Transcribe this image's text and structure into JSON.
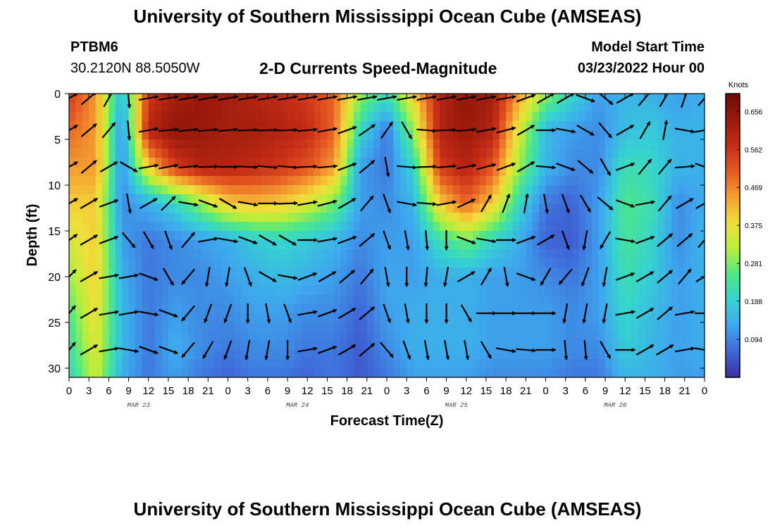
{
  "header": {
    "title": "University of Southern Mississippi Ocean Cube (AMSEAS)",
    "station": "PTBM6",
    "coordinates": "30.2120N  88.5050W",
    "subtitle": "2-D Currents Speed-Magnitude",
    "model_start_label": "Model Start Time",
    "model_start_value": "03/23/2022 Hour 00"
  },
  "footer": {
    "title": "University of Southern Mississippi Ocean Cube (AMSEAS)"
  },
  "chart_data": {
    "type": "heatmap",
    "xlabel": "Forecast Time(Z)",
    "ylabel": "Depth (ft)",
    "x_range_hours": [
      0,
      96
    ],
    "x_tick_labels": [
      "0",
      "3",
      "6",
      "9",
      "12",
      "15",
      "18",
      "21",
      "0",
      "3",
      "6",
      "9",
      "12",
      "15",
      "18",
      "21",
      "0",
      "3",
      "6",
      "9",
      "12",
      "15",
      "18",
      "21",
      "0",
      "3",
      "6",
      "9",
      "12",
      "15",
      "18",
      "21",
      "0"
    ],
    "day_labels": [
      {
        "label": "MAR 23",
        "hour": 10.5
      },
      {
        "label": "MAR 24",
        "hour": 34.5
      },
      {
        "label": "MAR 25",
        "hour": 58.5
      },
      {
        "label": "MAR 26",
        "hour": 82.5
      }
    ],
    "ylim": [
      0,
      31
    ],
    "y_ticks": [
      0,
      5,
      10,
      15,
      20,
      25,
      30
    ],
    "colorbar": {
      "label": "Knots",
      "min": 0.0,
      "max": 0.7,
      "ticks": [
        0.656,
        0.562,
        0.469,
        0.375,
        0.281,
        0.188,
        0.094
      ],
      "colors": [
        "#3a2ea0",
        "#3f67d8",
        "#3ea6ee",
        "#35d2d2",
        "#4ee886",
        "#b8ee3a",
        "#f1df3a",
        "#f5a030",
        "#e55a22",
        "#c62d16",
        "#9a1a0c",
        "#6e0c06"
      ]
    },
    "speed_knots": {
      "time_hours": [
        0,
        4,
        8,
        12,
        16,
        20,
        24,
        28,
        32,
        36,
        40,
        44,
        48,
        52,
        56,
        60,
        64,
        68,
        72,
        76,
        80,
        84,
        88,
        92,
        96
      ],
      "depth_ft": [
        0,
        4,
        8,
        12,
        16,
        20,
        24,
        28,
        31
      ],
      "values": [
        [
          0.55,
          0.45,
          0.15,
          0.55,
          0.62,
          0.64,
          0.62,
          0.6,
          0.58,
          0.55,
          0.5,
          0.3,
          0.22,
          0.4,
          0.6,
          0.65,
          0.62,
          0.45,
          0.3,
          0.2,
          0.12,
          0.15,
          0.14,
          0.12,
          0.14
        ],
        [
          0.5,
          0.45,
          0.1,
          0.6,
          0.65,
          0.64,
          0.62,
          0.62,
          0.6,
          0.58,
          0.5,
          0.2,
          0.08,
          0.3,
          0.6,
          0.64,
          0.6,
          0.35,
          0.15,
          0.12,
          0.1,
          0.16,
          0.18,
          0.14,
          0.15
        ],
        [
          0.45,
          0.45,
          0.1,
          0.4,
          0.55,
          0.6,
          0.6,
          0.58,
          0.56,
          0.52,
          0.45,
          0.12,
          0.08,
          0.2,
          0.55,
          0.6,
          0.52,
          0.3,
          0.15,
          0.1,
          0.1,
          0.22,
          0.2,
          0.15,
          0.14
        ],
        [
          0.4,
          0.4,
          0.1,
          0.14,
          0.2,
          0.3,
          0.4,
          0.42,
          0.4,
          0.35,
          0.28,
          0.12,
          0.1,
          0.15,
          0.4,
          0.5,
          0.4,
          0.2,
          0.08,
          0.06,
          0.12,
          0.25,
          0.22,
          0.1,
          0.14
        ],
        [
          0.35,
          0.4,
          0.12,
          0.08,
          0.1,
          0.12,
          0.14,
          0.18,
          0.2,
          0.18,
          0.15,
          0.1,
          0.12,
          0.12,
          0.22,
          0.28,
          0.2,
          0.14,
          0.06,
          0.05,
          0.12,
          0.24,
          0.2,
          0.1,
          0.15
        ],
        [
          0.3,
          0.4,
          0.14,
          0.08,
          0.1,
          0.1,
          0.12,
          0.14,
          0.16,
          0.14,
          0.12,
          0.08,
          0.13,
          0.12,
          0.14,
          0.14,
          0.12,
          0.12,
          0.1,
          0.08,
          0.12,
          0.22,
          0.18,
          0.12,
          0.14
        ],
        [
          0.25,
          0.38,
          0.15,
          0.08,
          0.12,
          0.1,
          0.1,
          0.12,
          0.12,
          0.1,
          0.1,
          0.06,
          0.12,
          0.14,
          0.14,
          0.14,
          0.12,
          0.12,
          0.12,
          0.1,
          0.12,
          0.2,
          0.16,
          0.12,
          0.14
        ],
        [
          0.22,
          0.36,
          0.15,
          0.08,
          0.14,
          0.1,
          0.08,
          0.1,
          0.1,
          0.08,
          0.08,
          0.05,
          0.1,
          0.14,
          0.14,
          0.14,
          0.12,
          0.12,
          0.12,
          0.1,
          0.1,
          0.18,
          0.15,
          0.12,
          0.14
        ],
        [
          0.2,
          0.34,
          0.14,
          0.08,
          0.12,
          0.08,
          0.06,
          0.08,
          0.08,
          0.06,
          0.08,
          0.05,
          0.08,
          0.12,
          0.12,
          0.12,
          0.1,
          0.1,
          0.1,
          0.08,
          0.08,
          0.15,
          0.14,
          0.12,
          0.12
        ]
      ]
    },
    "vectors": {
      "time_hours": [
        0,
        3,
        6,
        9,
        12,
        15,
        18,
        21,
        24,
        27,
        30,
        33,
        36,
        39,
        42,
        45,
        48,
        51,
        54,
        57,
        60,
        63,
        66,
        69,
        72,
        75,
        78,
        81,
        84,
        87,
        90,
        93,
        96
      ],
      "depth_ft": [
        0.5,
        4,
        8,
        12,
        16,
        20,
        24,
        28
      ],
      "direction_deg": [
        [
          60,
          50,
          30,
          175,
          80,
          80,
          80,
          80,
          80,
          80,
          80,
          80,
          80,
          80,
          80,
          80,
          80,
          80,
          80,
          80,
          80,
          80,
          80,
          70,
          60,
          60,
          110,
          130,
          60,
          40,
          30,
          20,
          40
        ],
        [
          60,
          50,
          40,
          175,
          80,
          85,
          85,
          85,
          85,
          88,
          88,
          88,
          85,
          80,
          70,
          55,
          35,
          150,
          95,
          88,
          85,
          80,
          75,
          60,
          90,
          100,
          120,
          140,
          60,
          30,
          10,
          100,
          80
        ],
        [
          60,
          50,
          60,
          120,
          80,
          80,
          85,
          88,
          90,
          92,
          95,
          95,
          88,
          85,
          70,
          50,
          170,
          95,
          88,
          85,
          80,
          75,
          70,
          60,
          95,
          110,
          130,
          150,
          70,
          40,
          40,
          85,
          110
        ],
        [
          60,
          60,
          70,
          170,
          60,
          45,
          100,
          110,
          120,
          100,
          90,
          88,
          80,
          75,
          60,
          40,
          160,
          100,
          95,
          80,
          65,
          30,
          20,
          10,
          170,
          160,
          150,
          130,
          110,
          80,
          40,
          60,
          60
        ],
        [
          55,
          60,
          70,
          140,
          150,
          160,
          40,
          80,
          100,
          110,
          120,
          120,
          90,
          80,
          70,
          50,
          160,
          170,
          175,
          180,
          110,
          100,
          90,
          70,
          60,
          160,
          190,
          210,
          100,
          70,
          50,
          50,
          40
        ],
        [
          45,
          60,
          80,
          80,
          110,
          150,
          220,
          190,
          190,
          160,
          120,
          100,
          70,
          60,
          50,
          40,
          170,
          180,
          185,
          190,
          60,
          30,
          170,
          110,
          210,
          220,
          200,
          190,
          70,
          60,
          50,
          40,
          60
        ],
        [
          40,
          60,
          80,
          80,
          100,
          110,
          220,
          200,
          200,
          180,
          170,
          160,
          80,
          70,
          60,
          50,
          160,
          170,
          180,
          180,
          150,
          90,
          90,
          90,
          90,
          190,
          190,
          190,
          80,
          60,
          50,
          80,
          90
        ],
        [
          40,
          60,
          80,
          100,
          110,
          110,
          220,
          210,
          200,
          190,
          190,
          180,
          80,
          70,
          60,
          50,
          140,
          160,
          170,
          170,
          170,
          150,
          100,
          95,
          90,
          175,
          175,
          150,
          90,
          60,
          60,
          80,
          100
        ]
      ]
    }
  }
}
